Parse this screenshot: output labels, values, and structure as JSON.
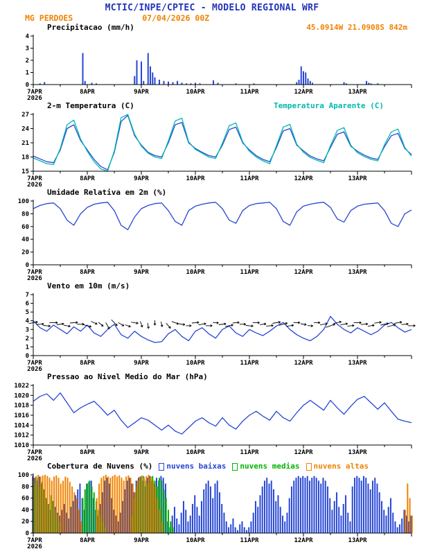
{
  "header": {
    "title": "MCTIC/INPE/CPTEC - MODELO REGIONAL WRF",
    "station": "MG PERDOES",
    "run": "07/04/2026 00Z",
    "location": "45.0914W 21.0908S 842m"
  },
  "x_axis": {
    "start_label_top": "7APR",
    "start_label_bottom": "2026",
    "day_labels": [
      "8APR",
      "9APR",
      "10APR",
      "11APR",
      "12APR",
      "13APR"
    ],
    "hours_total": 168,
    "major_tick_hours": 24,
    "minor_tick_hours": 12
  },
  "colors": {
    "title_blue": "#2233bb",
    "orange": "#f08200",
    "line_blue": "#2646d4",
    "cyan": "#00b8b0",
    "green": "#00b400",
    "black": "#000000"
  },
  "chart_data": [
    {
      "type": "bar",
      "title": "Precipitacao (mm/h)",
      "ylim": [
        0,
        4
      ],
      "yticks": [
        0,
        1,
        2,
        3,
        4
      ],
      "unit_hours": 1,
      "color_key": "line_blue",
      "events": [
        [
          3,
          0.1
        ],
        [
          5,
          0.2
        ],
        [
          22,
          2.6
        ],
        [
          23,
          0.3
        ],
        [
          26,
          0.15
        ],
        [
          28,
          0.1
        ],
        [
          45,
          0.7
        ],
        [
          46,
          2.0
        ],
        [
          48,
          1.9
        ],
        [
          49,
          0.3
        ],
        [
          51,
          2.6
        ],
        [
          52,
          1.5
        ],
        [
          53,
          1.0
        ],
        [
          54,
          0.6
        ],
        [
          56,
          0.4
        ],
        [
          58,
          0.3
        ],
        [
          60,
          0.25
        ],
        [
          62,
          0.2
        ],
        [
          64,
          0.3
        ],
        [
          66,
          0.15
        ],
        [
          68,
          0.1
        ],
        [
          70,
          0.1
        ],
        [
          72,
          0.15
        ],
        [
          74,
          0.1
        ],
        [
          80,
          0.35
        ],
        [
          82,
          0.15
        ],
        [
          90,
          0.1
        ],
        [
          98,
          0.1
        ],
        [
          117,
          0.2
        ],
        [
          118,
          0.4
        ],
        [
          119,
          1.5
        ],
        [
          120,
          1.1
        ],
        [
          121,
          1.0
        ],
        [
          122,
          0.5
        ],
        [
          123,
          0.3
        ],
        [
          124,
          0.15
        ],
        [
          138,
          0.2
        ],
        [
          139,
          0.1
        ],
        [
          148,
          0.3
        ],
        [
          149,
          0.15
        ],
        [
          150,
          0.1
        ],
        [
          153,
          0.1
        ]
      ]
    },
    {
      "type": "line",
      "title": "2-m Temperatura (C)",
      "legend_right": "Temperatura Aparente (C)",
      "ylim": [
        15,
        27
      ],
      "yticks": [
        15,
        18,
        21,
        24,
        27
      ],
      "step_hours": 3,
      "series": [
        {
          "name": "2-m Temperatura (C)",
          "color_key": "line_blue",
          "values": [
            18.2,
            17.6,
            17.0,
            16.8,
            19.5,
            24.0,
            24.8,
            21.5,
            19.5,
            17.5,
            16.0,
            15.3,
            19.0,
            25.5,
            26.8,
            22.5,
            20.5,
            19.0,
            18.3,
            18.0,
            21.0,
            24.8,
            25.3,
            21.0,
            19.8,
            19.0,
            18.3,
            18.0,
            20.5,
            23.8,
            24.3,
            21.0,
            19.5,
            18.3,
            17.5,
            17.0,
            20.0,
            23.5,
            24.0,
            20.5,
            19.3,
            18.2,
            17.6,
            17.2,
            20.0,
            22.8,
            23.3,
            20.3,
            19.2,
            18.4,
            17.8,
            17.5,
            20.2,
            22.5,
            23.0,
            19.8,
            18.5
          ]
        },
        {
          "name": "Temperatura Aparente (C)",
          "color_key": "cyan",
          "values": [
            17.8,
            17.2,
            16.6,
            16.4,
            19.8,
            24.8,
            25.8,
            21.8,
            19.2,
            17.0,
            15.5,
            15.0,
            19.3,
            26.3,
            27.0,
            22.8,
            20.3,
            18.8,
            18.0,
            17.7,
            21.4,
            25.6,
            26.2,
            21.2,
            19.6,
            18.8,
            18.0,
            17.7,
            20.9,
            24.6,
            25.2,
            21.2,
            19.2,
            18.0,
            17.2,
            16.6,
            20.4,
            24.3,
            24.9,
            20.7,
            19.0,
            17.9,
            17.3,
            16.8,
            20.4,
            23.6,
            24.2,
            20.5,
            18.9,
            18.1,
            17.5,
            17.2,
            20.6,
            23.3,
            23.9,
            20.0,
            18.2
          ]
        }
      ]
    },
    {
      "type": "line",
      "title": "Umidade Relativa em 2m (%)",
      "ylim": [
        0,
        100
      ],
      "yticks": [
        0,
        20,
        40,
        60,
        80,
        100
      ],
      "step_hours": 3,
      "series": [
        {
          "name": "Umidade Relativa em 2m (%)",
          "color_key": "line_blue",
          "values": [
            88,
            93,
            96,
            97,
            88,
            70,
            62,
            80,
            90,
            95,
            97,
            98,
            85,
            62,
            55,
            75,
            88,
            93,
            96,
            97,
            85,
            68,
            62,
            85,
            92,
            95,
            97,
            98,
            88,
            70,
            65,
            85,
            93,
            96,
            97,
            98,
            88,
            68,
            62,
            83,
            92,
            95,
            97,
            98,
            90,
            72,
            67,
            85,
            92,
            95,
            96,
            97,
            85,
            65,
            60,
            80,
            86
          ]
        }
      ]
    },
    {
      "type": "wind",
      "title": "Vento em 10m (m/s)",
      "ylim": [
        0,
        7
      ],
      "yticks": [
        0,
        1,
        2,
        3,
        4,
        5,
        6,
        7
      ],
      "step_hours": 3,
      "color_key": "line_blue",
      "barb_row_value": 3.6,
      "speed": [
        4.0,
        3.2,
        2.8,
        3.5,
        3.0,
        2.5,
        3.3,
        2.8,
        3.5,
        2.6,
        2.2,
        3.0,
        3.6,
        2.4,
        2.0,
        2.8,
        2.2,
        1.8,
        1.5,
        1.6,
        2.5,
        3.0,
        2.2,
        1.7,
        2.8,
        3.2,
        2.5,
        2.0,
        3.0,
        3.4,
        2.6,
        2.2,
        3.0,
        2.6,
        2.3,
        2.8,
        3.4,
        3.8,
        3.0,
        2.4,
        2.0,
        1.7,
        2.2,
        3.0,
        4.5,
        3.6,
        3.0,
        2.6,
        3.2,
        2.8,
        2.4,
        2.8,
        3.5,
        3.8,
        3.2,
        2.7,
        3.0
      ],
      "barb_angles_deg": [
        10,
        5,
        -5,
        0,
        8,
        -10,
        5,
        0,
        -15,
        -25,
        -40,
        -60,
        -45,
        -30,
        -20,
        -10,
        -70,
        -80,
        -90,
        -75,
        -50,
        -20,
        -10,
        0,
        5,
        10,
        0,
        -5,
        8,
        12,
        5,
        0,
        -5,
        0,
        8,
        5,
        10,
        15,
        8,
        0,
        -10,
        -5,
        0,
        10,
        20,
        15,
        10,
        5,
        0,
        5,
        10,
        8,
        12,
        15,
        10,
        5,
        0
      ]
    },
    {
      "type": "line",
      "title": "Pressao ao Nivel Medio do Mar (hPa)",
      "ylim": [
        1010,
        1022
      ],
      "yticks": [
        1010,
        1012,
        1014,
        1016,
        1018,
        1020,
        1022
      ],
      "step_hours": 3,
      "series": [
        {
          "name": "Pressao ao Nivel Medio do Mar (hPa)",
          "color_key": "line_blue",
          "values": [
            1018.8,
            1019.8,
            1020.3,
            1019.0,
            1020.5,
            1018.5,
            1016.5,
            1017.5,
            1018.2,
            1018.8,
            1017.5,
            1016.0,
            1017.0,
            1015.0,
            1013.5,
            1014.5,
            1015.5,
            1015.0,
            1014.0,
            1013.0,
            1014.0,
            1012.8,
            1012.2,
            1013.5,
            1014.8,
            1015.5,
            1014.5,
            1013.8,
            1015.5,
            1014.0,
            1013.2,
            1014.8,
            1016.0,
            1016.8,
            1015.8,
            1015.0,
            1016.8,
            1015.5,
            1014.8,
            1016.5,
            1018.0,
            1019.0,
            1018.0,
            1017.0,
            1019.0,
            1017.5,
            1016.2,
            1017.8,
            1019.2,
            1019.8,
            1018.5,
            1017.2,
            1018.5,
            1016.8,
            1015.2,
            1014.8,
            1014.5
          ]
        }
      ]
    },
    {
      "type": "cloud-bars",
      "title": "Cobertura de Nuvens (%)",
      "ylim": [
        0,
        100
      ],
      "yticks": [
        0,
        20,
        40,
        60,
        80,
        100
      ],
      "unit_hours": 1,
      "legend": [
        {
          "label": "nuvens baixas",
          "color_key": "line_blue"
        },
        {
          "label": "nuvens medias",
          "color_key": "green"
        },
        {
          "label": "nuvens altas",
          "color_key": "orange"
        }
      ],
      "series": [
        {
          "name": "nuvens baixas",
          "color_key": "line_blue",
          "values": [
            98,
            95,
            90,
            97,
            85,
            75,
            60,
            50,
            40,
            55,
            45,
            35,
            30,
            40,
            50,
            35,
            25,
            45,
            55,
            65,
            75,
            85,
            60,
            40,
            85,
            88,
            90,
            60,
            40,
            30,
            50,
            70,
            90,
            95,
            85,
            60,
            40,
            30,
            20,
            35,
            55,
            75,
            90,
            95,
            85,
            70,
            90,
            95,
            97,
            90,
            80,
            95,
            98,
            90,
            85,
            95,
            90,
            98,
            95,
            85,
            20,
            10,
            30,
            45,
            25,
            15,
            35,
            55,
            40,
            20,
            30,
            50,
            65,
            45,
            30,
            55,
            75,
            85,
            90,
            80,
            60,
            85,
            90,
            70,
            50,
            35,
            20,
            10,
            15,
            25,
            10,
            5,
            15,
            20,
            10,
            5,
            10,
            20,
            35,
            55,
            45,
            65,
            80,
            90,
            95,
            85,
            90,
            75,
            55,
            65,
            45,
            30,
            20,
            35,
            60,
            80,
            90,
            95,
            98,
            95,
            98,
            95,
            98,
            90,
            95,
            98,
            95,
            90,
            85,
            95,
            90,
            80,
            60,
            40,
            55,
            70,
            45,
            30,
            50,
            65,
            35,
            20,
            80,
            95,
            98,
            95,
            90,
            98,
            95,
            85,
            75,
            90,
            95,
            85,
            70,
            55,
            40,
            30,
            45,
            60,
            35,
            20,
            10,
            15,
            25,
            40,
            30,
            20,
            30
          ]
        },
        {
          "name": "nuvens medias",
          "color_key": "green",
          "values": [
            90,
            85,
            95,
            80,
            88,
            75,
            60,
            50,
            65,
            55,
            40,
            30,
            20,
            0,
            0,
            0,
            0,
            0,
            0,
            0,
            0,
            0,
            60,
            75,
            85,
            90,
            80,
            70,
            55,
            40,
            30,
            20,
            10,
            0,
            0,
            0,
            0,
            0,
            0,
            0,
            0,
            0,
            0,
            0,
            30,
            60,
            80,
            90,
            95,
            98,
            90,
            85,
            95,
            98,
            90,
            80,
            95,
            90,
            75,
            60,
            40,
            20,
            10,
            0,
            0,
            0,
            0,
            0,
            0,
            0,
            0,
            0,
            0,
            0,
            0,
            0,
            0,
            0,
            0,
            0,
            0,
            0,
            0,
            0,
            0,
            0,
            0,
            0,
            0,
            0,
            0,
            0,
            0,
            0,
            0,
            0,
            0,
            0,
            0,
            0,
            0,
            0,
            0,
            0,
            0,
            0,
            0,
            0,
            0,
            0,
            0,
            0,
            0,
            0,
            0,
            0,
            0,
            0,
            0,
            0,
            0,
            0,
            0,
            0,
            0,
            0,
            0,
            0,
            0,
            0,
            0,
            0,
            0,
            0,
            0,
            0,
            0,
            0,
            0,
            0,
            0,
            0,
            0,
            0,
            0,
            0,
            0,
            0,
            0,
            0,
            0,
            0,
            0,
            0,
            0,
            0,
            0,
            0,
            0,
            0,
            0,
            0,
            0,
            0,
            0,
            0,
            0,
            0,
            0
          ]
        },
        {
          "name": "nuvens altas",
          "color_key": "orange",
          "values": [
            95,
            98,
            100,
            97,
            99,
            100,
            98,
            95,
            90,
            97,
            99,
            95,
            85,
            90,
            97,
            95,
            88,
            80,
            70,
            60,
            40,
            20,
            0,
            0,
            0,
            0,
            0,
            0,
            60,
            85,
            95,
            98,
            100,
            97,
            95,
            98,
            100,
            97,
            99,
            95,
            90,
            97,
            99,
            95,
            85,
            70,
            90,
            97,
            99,
            95,
            98,
            100,
            97,
            90,
            80,
            60,
            40,
            20,
            0,
            0,
            0,
            0,
            0,
            0,
            0,
            0,
            0,
            0,
            0,
            0,
            0,
            0,
            0,
            0,
            0,
            0,
            0,
            0,
            0,
            0,
            0,
            0,
            0,
            0,
            0,
            0,
            0,
            0,
            0,
            0,
            0,
            0,
            0,
            0,
            0,
            0,
            0,
            0,
            0,
            0,
            0,
            0,
            0,
            0,
            0,
            0,
            0,
            0,
            0,
            0,
            0,
            0,
            0,
            0,
            0,
            0,
            0,
            0,
            0,
            0,
            0,
            0,
            0,
            0,
            0,
            0,
            0,
            0,
            0,
            0,
            0,
            0,
            0,
            0,
            0,
            0,
            0,
            0,
            0,
            0,
            0,
            0,
            0,
            0,
            0,
            0,
            0,
            0,
            0,
            0,
            0,
            0,
            0,
            0,
            0,
            0,
            0,
            0,
            0,
            0,
            0,
            0,
            0,
            0,
            0,
            40,
            85,
            60,
            30
          ]
        }
      ]
    }
  ]
}
